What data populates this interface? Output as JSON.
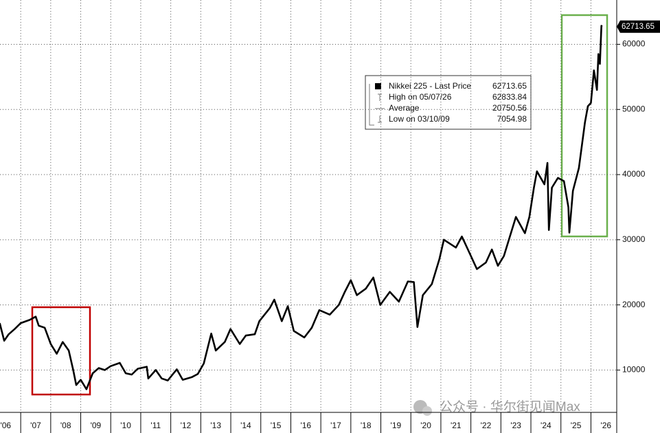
{
  "chart_data": {
    "type": "line",
    "x": [
      2006.3,
      2006.45,
      2006.6,
      2006.8,
      2007.0,
      2007.3,
      2007.5,
      2007.6,
      2007.8,
      2008.0,
      2008.2,
      2008.4,
      2008.6,
      2008.75,
      2008.85,
      2009.0,
      2009.19,
      2009.4,
      2009.6,
      2009.8,
      2010.0,
      2010.3,
      2010.5,
      2010.7,
      2010.9,
      2011.2,
      2011.25,
      2011.5,
      2011.7,
      2011.9,
      2012.2,
      2012.4,
      2012.7,
      2012.9,
      2013.1,
      2013.35,
      2013.5,
      2013.8,
      2013.99,
      2014.3,
      2014.5,
      2014.8,
      2014.95,
      2015.3,
      2015.45,
      2015.7,
      2015.9,
      2016.1,
      2016.45,
      2016.7,
      2016.95,
      2017.3,
      2017.6,
      2017.8,
      2018.0,
      2018.2,
      2018.5,
      2018.75,
      2018.98,
      2019.3,
      2019.6,
      2019.9,
      2020.1,
      2020.22,
      2020.4,
      2020.7,
      2020.95,
      2021.1,
      2021.5,
      2021.7,
      2021.9,
      2022.2,
      2022.5,
      2022.7,
      2022.9,
      2023.1,
      2023.3,
      2023.5,
      2023.8,
      2023.95,
      2024.1,
      2024.2,
      2024.45,
      2024.55,
      2024.6,
      2024.7,
      2024.9,
      2025.1,
      2025.25,
      2025.28,
      2025.4,
      2025.6,
      2025.8,
      2025.9,
      2026.0,
      2026.1,
      2026.2,
      2026.25,
      2026.3,
      2026.35,
      2026.37
    ],
    "series": [
      {
        "name": "Nikkei 225 - Last Price",
        "color": "#000000",
        "values": [
          17200,
          14500,
          15500,
          16300,
          17200,
          17700,
          18200,
          16800,
          16500,
          14000,
          12500,
          14300,
          13000,
          10000,
          7700,
          8500,
          7055,
          9500,
          10300,
          10000,
          10600,
          11100,
          9500,
          9300,
          10200,
          10500,
          8700,
          10000,
          8700,
          8400,
          10100,
          8500,
          8900,
          9400,
          11000,
          15600,
          13000,
          14300,
          16300,
          14000,
          15300,
          15500,
          17500,
          19500,
          20800,
          17500,
          19800,
          16000,
          15000,
          16500,
          19200,
          18500,
          20000,
          22000,
          23800,
          21500,
          22500,
          24200,
          20000,
          22000,
          20500,
          23600,
          23500,
          16600,
          21500,
          23200,
          27000,
          30000,
          28800,
          30500,
          28500,
          25500,
          26500,
          28500,
          26000,
          27500,
          30500,
          33500,
          31000,
          33500,
          38000,
          40500,
          38500,
          41800,
          31500,
          38000,
          39500,
          39000,
          35000,
          31100,
          37500,
          41000,
          48000,
          50500,
          51000,
          56000,
          53000,
          58500,
          57000,
          62834,
          62713.65
        ]
      }
    ],
    "xlim": [
      2006.31,
      2026.86
    ],
    "xticks": [
      2007,
      2008,
      2009,
      2010,
      2011,
      2012,
      2013,
      2014,
      2015,
      2016,
      2017,
      2018,
      2019,
      2020,
      2021,
      2022,
      2023,
      2024,
      2025,
      2026
    ],
    "xtick_labels": [
      {
        "value": 2006.5,
        "label": "'06"
      },
      {
        "value": 2007.5,
        "label": "'07"
      },
      {
        "value": 2008.5,
        "label": "'08"
      },
      {
        "value": 2009.5,
        "label": "'09"
      },
      {
        "value": 2010.5,
        "label": "'10"
      },
      {
        "value": 2011.5,
        "label": "'11"
      },
      {
        "value": 2012.5,
        "label": "'12"
      },
      {
        "value": 2013.5,
        "label": "'13"
      },
      {
        "value": 2014.5,
        "label": "'14"
      },
      {
        "value": 2015.5,
        "label": "'15"
      },
      {
        "value": 2016.5,
        "label": "'16"
      },
      {
        "value": 2017.5,
        "label": "'17"
      },
      {
        "value": 2018.5,
        "label": "'18"
      },
      {
        "value": 2019.5,
        "label": "'19"
      },
      {
        "value": 2020.5,
        "label": "'20"
      },
      {
        "value": 2021.5,
        "label": "'21"
      },
      {
        "value": 2022.5,
        "label": "'22"
      },
      {
        "value": 2023.5,
        "label": "'23"
      },
      {
        "value": 2024.5,
        "label": "'24"
      },
      {
        "value": 2025.5,
        "label": "'25"
      },
      {
        "value": 2026.5,
        "label": "'26"
      }
    ],
    "ylim": [
      3500,
      66800
    ],
    "yticks": [
      10000,
      20000,
      30000,
      40000,
      50000,
      60000
    ],
    "grid": true,
    "last_price": 62713.65,
    "legend": {
      "stats": [
        {
          "label": "High on 05/07/26",
          "value": 62833.84
        },
        {
          "label": "Average",
          "value": 20750.56
        },
        {
          "label": "Low on 03/10/09",
          "value": 7054.98
        }
      ]
    },
    "watermark": "公众号 · 华尔街见闻Max"
  }
}
